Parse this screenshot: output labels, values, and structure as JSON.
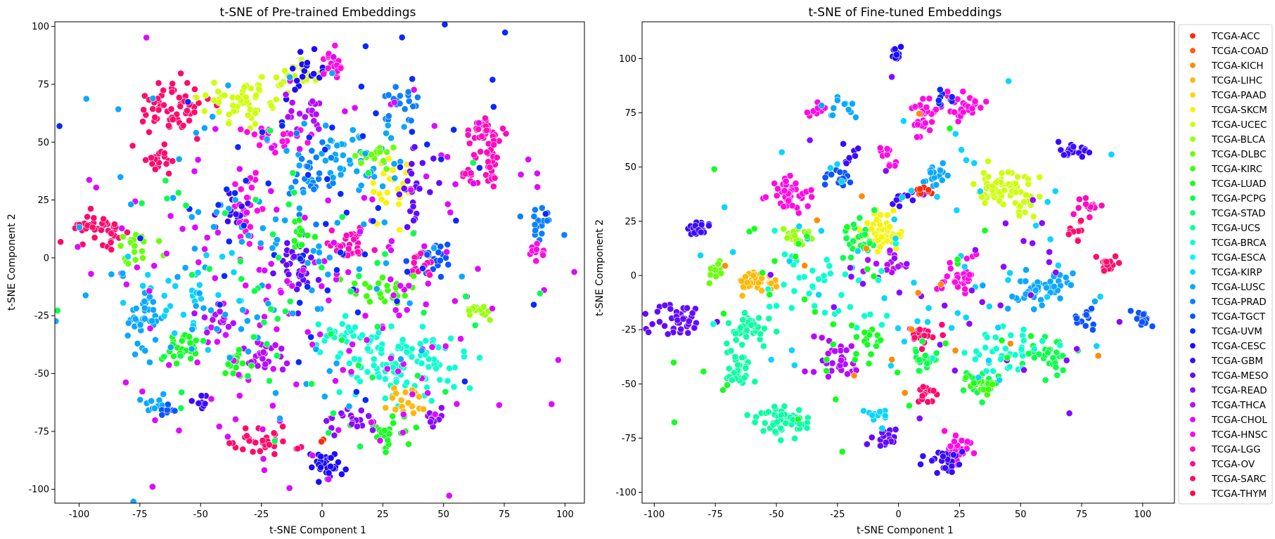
{
  "chart_data": [
    {
      "type": "scatter",
      "title": "t-SNE of Pre-trained Embeddings",
      "xlabel": "t-SNE Component 1",
      "ylabel": "t-SNE Component 2",
      "xlim": [
        -110,
        108
      ],
      "ylim": [
        -106,
        102
      ],
      "xticks": [
        -100,
        -75,
        -50,
        -25,
        0,
        25,
        50,
        75,
        100
      ],
      "yticks": [
        -100,
        -75,
        -50,
        -25,
        0,
        25,
        50,
        75,
        100
      ],
      "grid": false,
      "clusters": [
        {
          "class": "TCGA-SARC",
          "x": -62,
          "y": 65,
          "sx": 8,
          "sy": 6,
          "n": 60
        },
        {
          "class": "TCGA-UCEC",
          "x": -30,
          "y": 68,
          "sx": 9,
          "sy": 5,
          "n": 60
        },
        {
          "class": "TCGA-SARC",
          "x": -92,
          "y": 13,
          "sx": 6,
          "sy": 3,
          "n": 40
        },
        {
          "class": "TCGA-SARC",
          "x": -68,
          "y": 42,
          "sx": 3,
          "sy": 3,
          "n": 18
        },
        {
          "class": "TCGA-UCEC",
          "x": -10,
          "y": 78,
          "sx": 4,
          "sy": 3,
          "n": 20
        },
        {
          "class": "TCGA-CESC",
          "x": -5,
          "y": 80,
          "sx": 5,
          "sy": 4,
          "n": 20
        },
        {
          "class": "TCGA-HNSC",
          "x": 5,
          "y": 83,
          "sx": 4,
          "sy": 4,
          "n": 18
        },
        {
          "class": "TCGA-THCA",
          "x": -8,
          "y": 62,
          "sx": 5,
          "sy": 4,
          "n": 20
        },
        {
          "class": "TCGA-PRAD",
          "x": 33,
          "y": 65,
          "sx": 4,
          "sy": 4,
          "n": 20
        },
        {
          "class": "TCGA-LGG",
          "x": 67,
          "y": 55,
          "sx": 4,
          "sy": 3,
          "n": 30
        },
        {
          "class": "TCGA-LGG",
          "x": 70,
          "y": 43,
          "sx": 3,
          "sy": 6,
          "n": 25
        },
        {
          "class": "TCGA-LGG",
          "x": 61,
          "y": 38,
          "sx": 2,
          "sy": 4,
          "n": 12
        },
        {
          "class": "TCGA-HNSC",
          "x": -31,
          "y": 20,
          "sx": 3,
          "sy": 8,
          "n": 30
        },
        {
          "class": "TCGA-GBM",
          "x": -37,
          "y": 20,
          "sx": 3,
          "sy": 5,
          "n": 18
        },
        {
          "class": "TCGA-SKCM",
          "x": 30,
          "y": 33,
          "sx": 4,
          "sy": 8,
          "n": 25
        },
        {
          "class": "TCGA-MESO",
          "x": 38,
          "y": 30,
          "sx": 4,
          "sy": 8,
          "n": 25
        },
        {
          "class": "TCGA-LUSC",
          "x": 12,
          "y": 45,
          "sx": 10,
          "sy": 7,
          "n": 40
        },
        {
          "class": "TCGA-DLBC",
          "x": 20,
          "y": 45,
          "sx": 4,
          "sy": 3,
          "n": 15
        },
        {
          "class": "TCGA-HNSC",
          "x": -20,
          "y": 52,
          "sx": 10,
          "sy": 3,
          "n": 22
        },
        {
          "class": "TCGA-PRAD",
          "x": -5,
          "y": 38,
          "sx": 5,
          "sy": 8,
          "n": 25
        },
        {
          "class": "TCGA-LGG",
          "x": 11,
          "y": 5,
          "sx": 5,
          "sy": 4,
          "n": 30
        },
        {
          "class": "TCGA-MESO",
          "x": -10,
          "y": -3,
          "sx": 4,
          "sy": 7,
          "n": 35
        },
        {
          "class": "TCGA-LUAD",
          "x": -8,
          "y": 8,
          "sx": 3,
          "sy": 4,
          "n": 12
        },
        {
          "class": "TCGA-TGCT",
          "x": 45,
          "y": 0,
          "sx": 4,
          "sy": 4,
          "n": 25
        },
        {
          "class": "TCGA-LGG",
          "x": 40,
          "y": -3,
          "sx": 3,
          "sy": 3,
          "n": 15
        },
        {
          "class": "TCGA-KIRC",
          "x": 28,
          "y": -13,
          "sx": 7,
          "sy": 4,
          "n": 25
        },
        {
          "class": "TCGA-LUSC",
          "x": -72,
          "y": -25,
          "sx": 4,
          "sy": 6,
          "n": 40
        },
        {
          "class": "TCGA-DLBC",
          "x": -75,
          "y": 5,
          "sx": 5,
          "sy": 4,
          "n": 20
        },
        {
          "class": "TCGA-LUAD",
          "x": -57,
          "y": -38,
          "sx": 4,
          "sy": 4,
          "n": 25
        },
        {
          "class": "TCGA-KIRP",
          "x": -50,
          "y": -15,
          "sx": 10,
          "sy": 10,
          "n": 35
        },
        {
          "class": "TCGA-THCA",
          "x": -45,
          "y": -28,
          "sx": 4,
          "sy": 3,
          "n": 15
        },
        {
          "class": "TCGA-BRCA",
          "x": 35,
          "y": -45,
          "sx": 12,
          "sy": 8,
          "n": 100
        },
        {
          "class": "TCGA-BRCA",
          "x": 10,
          "y": -35,
          "sx": 7,
          "sy": 4,
          "n": 30
        },
        {
          "class": "TCGA-LIHC",
          "x": 35,
          "y": -62,
          "sx": 4,
          "sy": 3,
          "n": 18
        },
        {
          "class": "TCGA-LUAD",
          "x": 28,
          "y": -75,
          "sx": 6,
          "sy": 3,
          "n": 25
        },
        {
          "class": "TCGA-READ",
          "x": 12,
          "y": -70,
          "sx": 6,
          "sy": 3,
          "n": 22
        },
        {
          "class": "TCGA-READ",
          "x": 46,
          "y": -70,
          "sx": 3,
          "sy": 2,
          "n": 10
        },
        {
          "class": "TCGA-SARC",
          "x": -23,
          "y": -80,
          "sx": 7,
          "sy": 3,
          "n": 35
        },
        {
          "class": "TCGA-CESC",
          "x": 2,
          "y": -90,
          "sx": 3,
          "sy": 3,
          "n": 30
        },
        {
          "class": "TCGA-THCA",
          "x": -25,
          "y": -43,
          "sx": 5,
          "sy": 4,
          "n": 25
        },
        {
          "class": "TCGA-LUAD",
          "x": -35,
          "y": -45,
          "sx": 4,
          "sy": 3,
          "n": 18
        },
        {
          "class": "TCGA-BLCA",
          "x": 65,
          "y": -24,
          "sx": 3,
          "sy": 2,
          "n": 15
        },
        {
          "class": "TCGA-PRAD",
          "x": 90,
          "y": 16,
          "sx": 4,
          "sy": 4,
          "n": 18
        },
        {
          "class": "TCGA-HNSC",
          "x": 88,
          "y": 3,
          "sx": 3,
          "sy": 2,
          "n": 10
        },
        {
          "class": "TCGA-LUSC",
          "x": -70,
          "y": -62,
          "sx": 3,
          "sy": 2,
          "n": 10
        },
        {
          "class": "TCGA-TGCT",
          "x": -64,
          "y": -65,
          "sx": 2,
          "sy": 3,
          "n": 8
        },
        {
          "class": "TCGA-GBM",
          "x": -50,
          "y": -63,
          "sx": 2,
          "sy": 2,
          "n": 8
        },
        {
          "class": "TCGA-ACC",
          "x": 0,
          "y": -78,
          "sx": 1,
          "sy": 1,
          "n": 2
        },
        {
          "class": "TCGA-CHOL",
          "x": 0,
          "y": -10,
          "sx": 50,
          "sy": 45,
          "n": 180
        },
        {
          "class": "TCGA-LUSC",
          "x": -20,
          "y": 0,
          "sx": 40,
          "sy": 40,
          "n": 110
        },
        {
          "class": "TCGA-UVM",
          "x": 10,
          "y": 20,
          "sx": 45,
          "sy": 40,
          "n": 70
        },
        {
          "class": "TCGA-PCPG",
          "x": -10,
          "y": -15,
          "sx": 40,
          "sy": 30,
          "n": 60
        }
      ]
    },
    {
      "type": "scatter",
      "title": "t-SNE of Fine-tuned Embeddings",
      "xlabel": "t-SNE Component 1",
      "ylabel": "t-SNE Component 2",
      "xlim": [
        -105,
        113
      ],
      "ylim": [
        -105,
        117
      ],
      "xticks": [
        -100,
        -75,
        -50,
        -25,
        0,
        25,
        50,
        75,
        100
      ],
      "yticks": [
        -100,
        -75,
        -50,
        -25,
        0,
        25,
        50,
        75,
        100
      ],
      "grid": false,
      "clusters": [
        {
          "class": "TCGA-CESC",
          "x": -1,
          "y": 103,
          "sx": 1,
          "sy": 1.5,
          "n": 10
        },
        {
          "class": "TCGA-HNSC",
          "x": 10,
          "y": 73,
          "sx": 2,
          "sy": 5,
          "n": 30
        },
        {
          "class": "TCGA-HNSC",
          "x": 27,
          "y": 78,
          "sx": 4,
          "sy": 3,
          "n": 30
        },
        {
          "class": "TCGA-HNSC",
          "x": -45,
          "y": 38,
          "sx": 4,
          "sy": 4,
          "n": 40
        },
        {
          "class": "TCGA-UCEC",
          "x": 43,
          "y": 40,
          "sx": 6,
          "sy": 4,
          "n": 60
        },
        {
          "class": "TCGA-UCEC",
          "x": 52,
          "y": 32,
          "sx": 3,
          "sy": 3,
          "n": 12
        },
        {
          "class": "TCGA-SKCM",
          "x": -8,
          "y": 20,
          "sx": 5,
          "sy": 5,
          "n": 55
        },
        {
          "class": "TCGA-PCPG",
          "x": -18,
          "y": 18,
          "sx": 4,
          "sy": 5,
          "n": 25
        },
        {
          "class": "TCGA-LIHC",
          "x": -58,
          "y": -2,
          "sx": 4,
          "sy": 3,
          "n": 35
        },
        {
          "class": "TCGA-BLCA",
          "x": -42,
          "y": 18,
          "sx": 3,
          "sy": 3,
          "n": 20
        },
        {
          "class": "TCGA-DLBC",
          "x": -75,
          "y": 2,
          "sx": 2,
          "sy": 2,
          "n": 15
        },
        {
          "class": "TCGA-MESO",
          "x": -90,
          "y": -20,
          "sx": 5,
          "sy": 4,
          "n": 40
        },
        {
          "class": "TCGA-GBM",
          "x": -82,
          "y": 22,
          "sx": 2,
          "sy": 2,
          "n": 20
        },
        {
          "class": "TCGA-UCS",
          "x": -60,
          "y": -25,
          "sx": 5,
          "sy": 3,
          "n": 35
        },
        {
          "class": "TCGA-UCS",
          "x": -65,
          "y": -42,
          "sx": 3,
          "sy": 5,
          "n": 30
        },
        {
          "class": "TCGA-UCS",
          "x": -47,
          "y": -67,
          "sx": 6,
          "sy": 4,
          "n": 55
        },
        {
          "class": "TCGA-HNSC",
          "x": 25,
          "y": -80,
          "sx": 3,
          "sy": 4,
          "n": 25
        },
        {
          "class": "TCGA-GBM",
          "x": 18,
          "y": -85,
          "sx": 4,
          "sy": 3,
          "n": 25
        },
        {
          "class": "TCGA-SARC",
          "x": 12,
          "y": -55,
          "sx": 2,
          "sy": 2,
          "n": 15
        },
        {
          "class": "TCGA-SARC",
          "x": 10,
          "y": -28,
          "sx": 3,
          "sy": 3,
          "n": 20
        },
        {
          "class": "TCGA-PCPG",
          "x": 10,
          "y": -40,
          "sx": 3,
          "sy": 3,
          "n": 20
        },
        {
          "class": "TCGA-HNSC",
          "x": 25,
          "y": 0,
          "sx": 4,
          "sy": 4,
          "n": 30
        },
        {
          "class": "TCGA-LUSC",
          "x": 58,
          "y": -5,
          "sx": 7,
          "sy": 5,
          "n": 50
        },
        {
          "class": "TCGA-PCPG",
          "x": 62,
          "y": -37,
          "sx": 5,
          "sy": 4,
          "n": 30
        },
        {
          "class": "TCGA-PCPG",
          "x": 33,
          "y": -50,
          "sx": 4,
          "sy": 3,
          "n": 25
        },
        {
          "class": "TCGA-BRCA",
          "x": 45,
          "y": -35,
          "sx": 9,
          "sy": 5,
          "n": 40
        },
        {
          "class": "TCGA-TGCT",
          "x": 76,
          "y": -20,
          "sx": 2,
          "sy": 3,
          "n": 15
        },
        {
          "class": "TCGA-TGCT",
          "x": 100,
          "y": -20,
          "sx": 2,
          "sy": 2,
          "n": 15
        },
        {
          "class": "TCGA-SARC",
          "x": 85,
          "y": 5,
          "sx": 2,
          "sy": 2,
          "n": 15
        },
        {
          "class": "TCGA-GBM",
          "x": 72,
          "y": 57,
          "sx": 3,
          "sy": 2,
          "n": 20
        },
        {
          "class": "TCGA-LGG",
          "x": 78,
          "y": 32,
          "sx": 3,
          "sy": 2,
          "n": 15
        },
        {
          "class": "TCGA-SARC",
          "x": 73,
          "y": 20,
          "sx": 2,
          "sy": 3,
          "n": 10
        },
        {
          "class": "TCGA-LUSC",
          "x": 15,
          "y": 47,
          "sx": 3,
          "sy": 4,
          "n": 20
        },
        {
          "class": "TCGA-UVM",
          "x": 17,
          "y": 82,
          "sx": 3,
          "sy": 2,
          "n": 8
        },
        {
          "class": "TCGA-HNSC",
          "x": -33,
          "y": 75,
          "sx": 3,
          "sy": 2,
          "n": 10
        },
        {
          "class": "TCGA-LUSC",
          "x": -25,
          "y": 78,
          "sx": 3,
          "sy": 3,
          "n": 12
        },
        {
          "class": "TCGA-HNSC",
          "x": -5,
          "y": 55,
          "sx": 2,
          "sy": 3,
          "n": 10
        },
        {
          "class": "TCGA-TGCT",
          "x": -25,
          "y": 45,
          "sx": 3,
          "sy": 2,
          "n": 15
        },
        {
          "class": "TCGA-GBM",
          "x": -20,
          "y": 55,
          "sx": 2,
          "sy": 2,
          "n": 8
        },
        {
          "class": "TCGA-THCA",
          "x": -25,
          "y": -40,
          "sx": 5,
          "sy": 6,
          "n": 30
        },
        {
          "class": "TCGA-LUAD",
          "x": -12,
          "y": -30,
          "sx": 3,
          "sy": 4,
          "n": 15
        },
        {
          "class": "TCGA-KIRC",
          "x": 35,
          "y": -52,
          "sx": 3,
          "sy": 3,
          "n": 15
        },
        {
          "class": "TCGA-MESO",
          "x": -5,
          "y": -75,
          "sx": 3,
          "sy": 3,
          "n": 18
        },
        {
          "class": "TCGA-KIRP",
          "x": -10,
          "y": -65,
          "sx": 3,
          "sy": 3,
          "n": 12
        },
        {
          "class": "TCGA-THCA",
          "x": -5,
          "y": 5,
          "sx": 4,
          "sy": 3,
          "n": 15
        },
        {
          "class": "TCGA-GBM",
          "x": 2,
          "y": 35,
          "sx": 2,
          "sy": 2,
          "n": 10
        },
        {
          "class": "TCGA-BRCA",
          "x": -35,
          "y": -5,
          "sx": 15,
          "sy": 12,
          "n": 40
        },
        {
          "class": "TCGA-KIRP",
          "x": 10,
          "y": 10,
          "sx": 40,
          "sy": 35,
          "n": 60
        },
        {
          "class": "TCGA-READ",
          "x": 20,
          "y": -10,
          "sx": 40,
          "sy": 35,
          "n": 40
        },
        {
          "class": "TCGA-ACC",
          "x": 10,
          "y": 38,
          "sx": 2,
          "sy": 2,
          "n": 8
        },
        {
          "class": "TCGA-KICH",
          "x": 20,
          "y": 0,
          "sx": 40,
          "sy": 35,
          "n": 15
        },
        {
          "class": "TCGA-LUAD",
          "x": -20,
          "y": -10,
          "sx": 40,
          "sy": 35,
          "n": 40
        }
      ]
    }
  ],
  "legend": {
    "position": "right",
    "items": [
      {
        "label": "TCGA-ACC",
        "color": "#ff2a0a"
      },
      {
        "label": "TCGA-COAD",
        "color": "#ff5a0a"
      },
      {
        "label": "TCGA-KICH",
        "color": "#ff8a0a"
      },
      {
        "label": "TCGA-LIHC",
        "color": "#ffb80a"
      },
      {
        "label": "TCGA-PAAD",
        "color": "#ffd60a"
      },
      {
        "label": "TCGA-SKCM",
        "color": "#f7f40a"
      },
      {
        "label": "TCGA-UCEC",
        "color": "#ceff0a"
      },
      {
        "label": "TCGA-BLCA",
        "color": "#9aff0a"
      },
      {
        "label": "TCGA-DLBC",
        "color": "#6aff0a"
      },
      {
        "label": "TCGA-KIRC",
        "color": "#3cff0a"
      },
      {
        "label": "TCGA-LUAD",
        "color": "#14ff1e"
      },
      {
        "label": "TCGA-PCPG",
        "color": "#0aff4a"
      },
      {
        "label": "TCGA-STAD",
        "color": "#0aff78"
      },
      {
        "label": "TCGA-UCS",
        "color": "#0affa2"
      },
      {
        "label": "TCGA-BRCA",
        "color": "#0affd0"
      },
      {
        "label": "TCGA-ESCA",
        "color": "#0af6f6"
      },
      {
        "label": "TCGA-KIRP",
        "color": "#0ad4ff"
      },
      {
        "label": "TCGA-LUSC",
        "color": "#0aa8ff"
      },
      {
        "label": "TCGA-PRAD",
        "color": "#0a80ff"
      },
      {
        "label": "TCGA-TGCT",
        "color": "#0a54ff"
      },
      {
        "label": "TCGA-UVM",
        "color": "#0a28ff"
      },
      {
        "label": "TCGA-CESC",
        "color": "#1a0aff"
      },
      {
        "label": "TCGA-GBM",
        "color": "#3a0aff"
      },
      {
        "label": "TCGA-MESO",
        "color": "#620aff"
      },
      {
        "label": "TCGA-READ",
        "color": "#8a0aff"
      },
      {
        "label": "TCGA-THCA",
        "color": "#b40aff"
      },
      {
        "label": "TCGA-CHOL",
        "color": "#dc0aff"
      },
      {
        "label": "TCGA-HNSC",
        "color": "#ff0ae4"
      },
      {
        "label": "TCGA-LGG",
        "color": "#ff0abc"
      },
      {
        "label": "TCGA-OV",
        "color": "#ff0a94"
      },
      {
        "label": "TCGA-SARC",
        "color": "#ff0a6c"
      },
      {
        "label": "TCGA-THYM",
        "color": "#ff0a44"
      }
    ]
  }
}
